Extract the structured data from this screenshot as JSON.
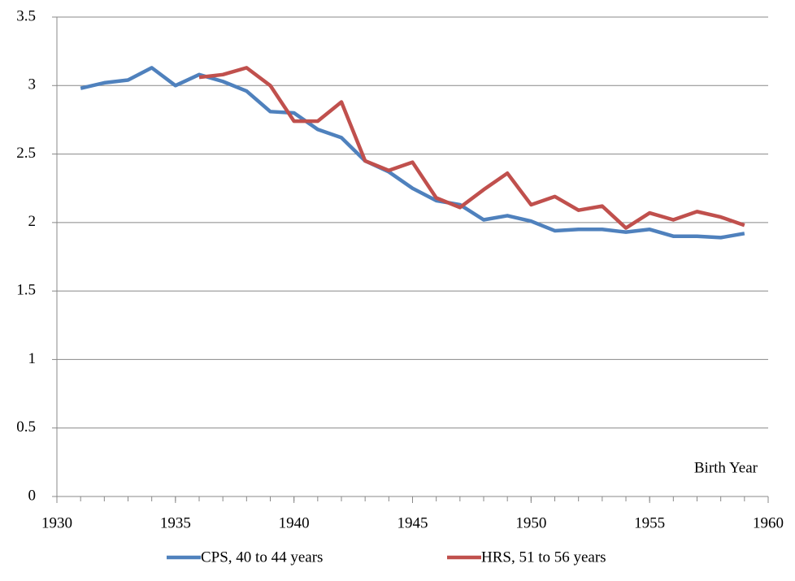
{
  "chart_data": {
    "type": "line",
    "x": [
      1931,
      1932,
      1933,
      1934,
      1935,
      1936,
      1937,
      1938,
      1939,
      1940,
      1941,
      1942,
      1943,
      1944,
      1945,
      1946,
      1947,
      1948,
      1949,
      1950,
      1951,
      1952,
      1953,
      1954,
      1955,
      1956,
      1957,
      1958,
      1959
    ],
    "series": [
      {
        "name": "CPS, 40 to 44 years",
        "color": "#4f81bd",
        "values": [
          2.98,
          3.02,
          3.04,
          3.13,
          3.0,
          3.08,
          3.03,
          2.96,
          2.81,
          2.8,
          2.68,
          2.62,
          2.45,
          2.37,
          2.25,
          2.16,
          2.13,
          2.02,
          2.05,
          2.01,
          1.94,
          1.95,
          1.95,
          1.93,
          1.95,
          1.9,
          1.9,
          1.89,
          1.92
        ]
      },
      {
        "name": "HRS, 51 to 56 years",
        "color": "#c0504d",
        "values": [
          null,
          null,
          null,
          null,
          null,
          3.06,
          3.08,
          3.13,
          3.0,
          2.74,
          2.74,
          2.88,
          2.45,
          2.38,
          2.44,
          2.18,
          2.11,
          2.24,
          2.36,
          2.13,
          2.19,
          2.09,
          2.12,
          1.96,
          2.07,
          2.02,
          2.08,
          2.04,
          1.98
        ]
      }
    ],
    "x_label": "Birth Year",
    "xlim": [
      1930,
      1960
    ],
    "xticks": [
      1930,
      1935,
      1940,
      1945,
      1950,
      1955,
      1960
    ],
    "ylim": [
      0,
      3.5
    ],
    "yticks": [
      0,
      0.5,
      1,
      1.5,
      2,
      2.5,
      3,
      3.5
    ],
    "grid": true,
    "legend": "bottom"
  }
}
